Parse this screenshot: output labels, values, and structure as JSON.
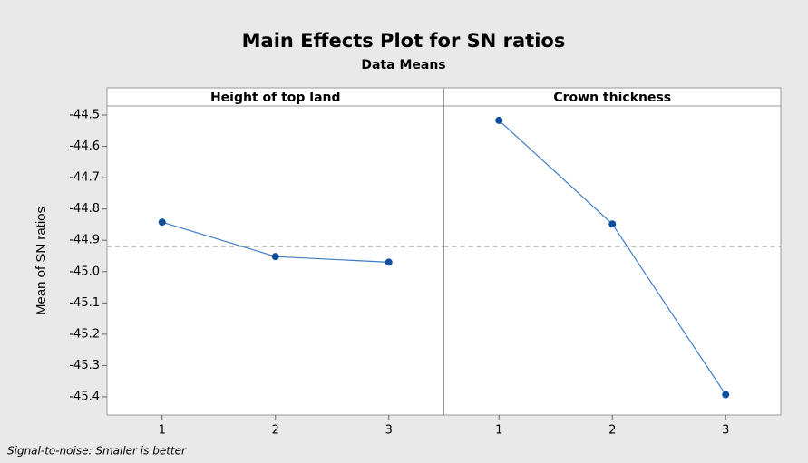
{
  "chart_data": {
    "type": "line",
    "title": "Main Effects Plot for SN ratios",
    "subtitle": "Data Means",
    "ylabel": "Mean of SN ratios",
    "footnote": "Signal-to-noise: Smaller is better",
    "line_color": "#3f7cc4",
    "marker_color": "#0d4f9e",
    "reference_line": -44.92,
    "ylim": [
      -45.458,
      -44.471
    ],
    "yticks": [
      -44.5,
      -44.6,
      -44.7,
      -44.8,
      -44.9,
      {
        "value": -45,
        "label": "-45.0"
      },
      -45.1,
      -45.2,
      -45.3,
      -45.4
    ],
    "panels": [
      {
        "title": "Height of top land",
        "categories": [
          "1",
          "2",
          "3"
        ],
        "values": [
          -44.842,
          -44.952,
          -44.97
        ]
      },
      {
        "title": "Crown thickness",
        "categories": [
          "1",
          "2",
          "3"
        ],
        "values": [
          -44.517,
          -44.848,
          -45.393
        ]
      }
    ]
  }
}
